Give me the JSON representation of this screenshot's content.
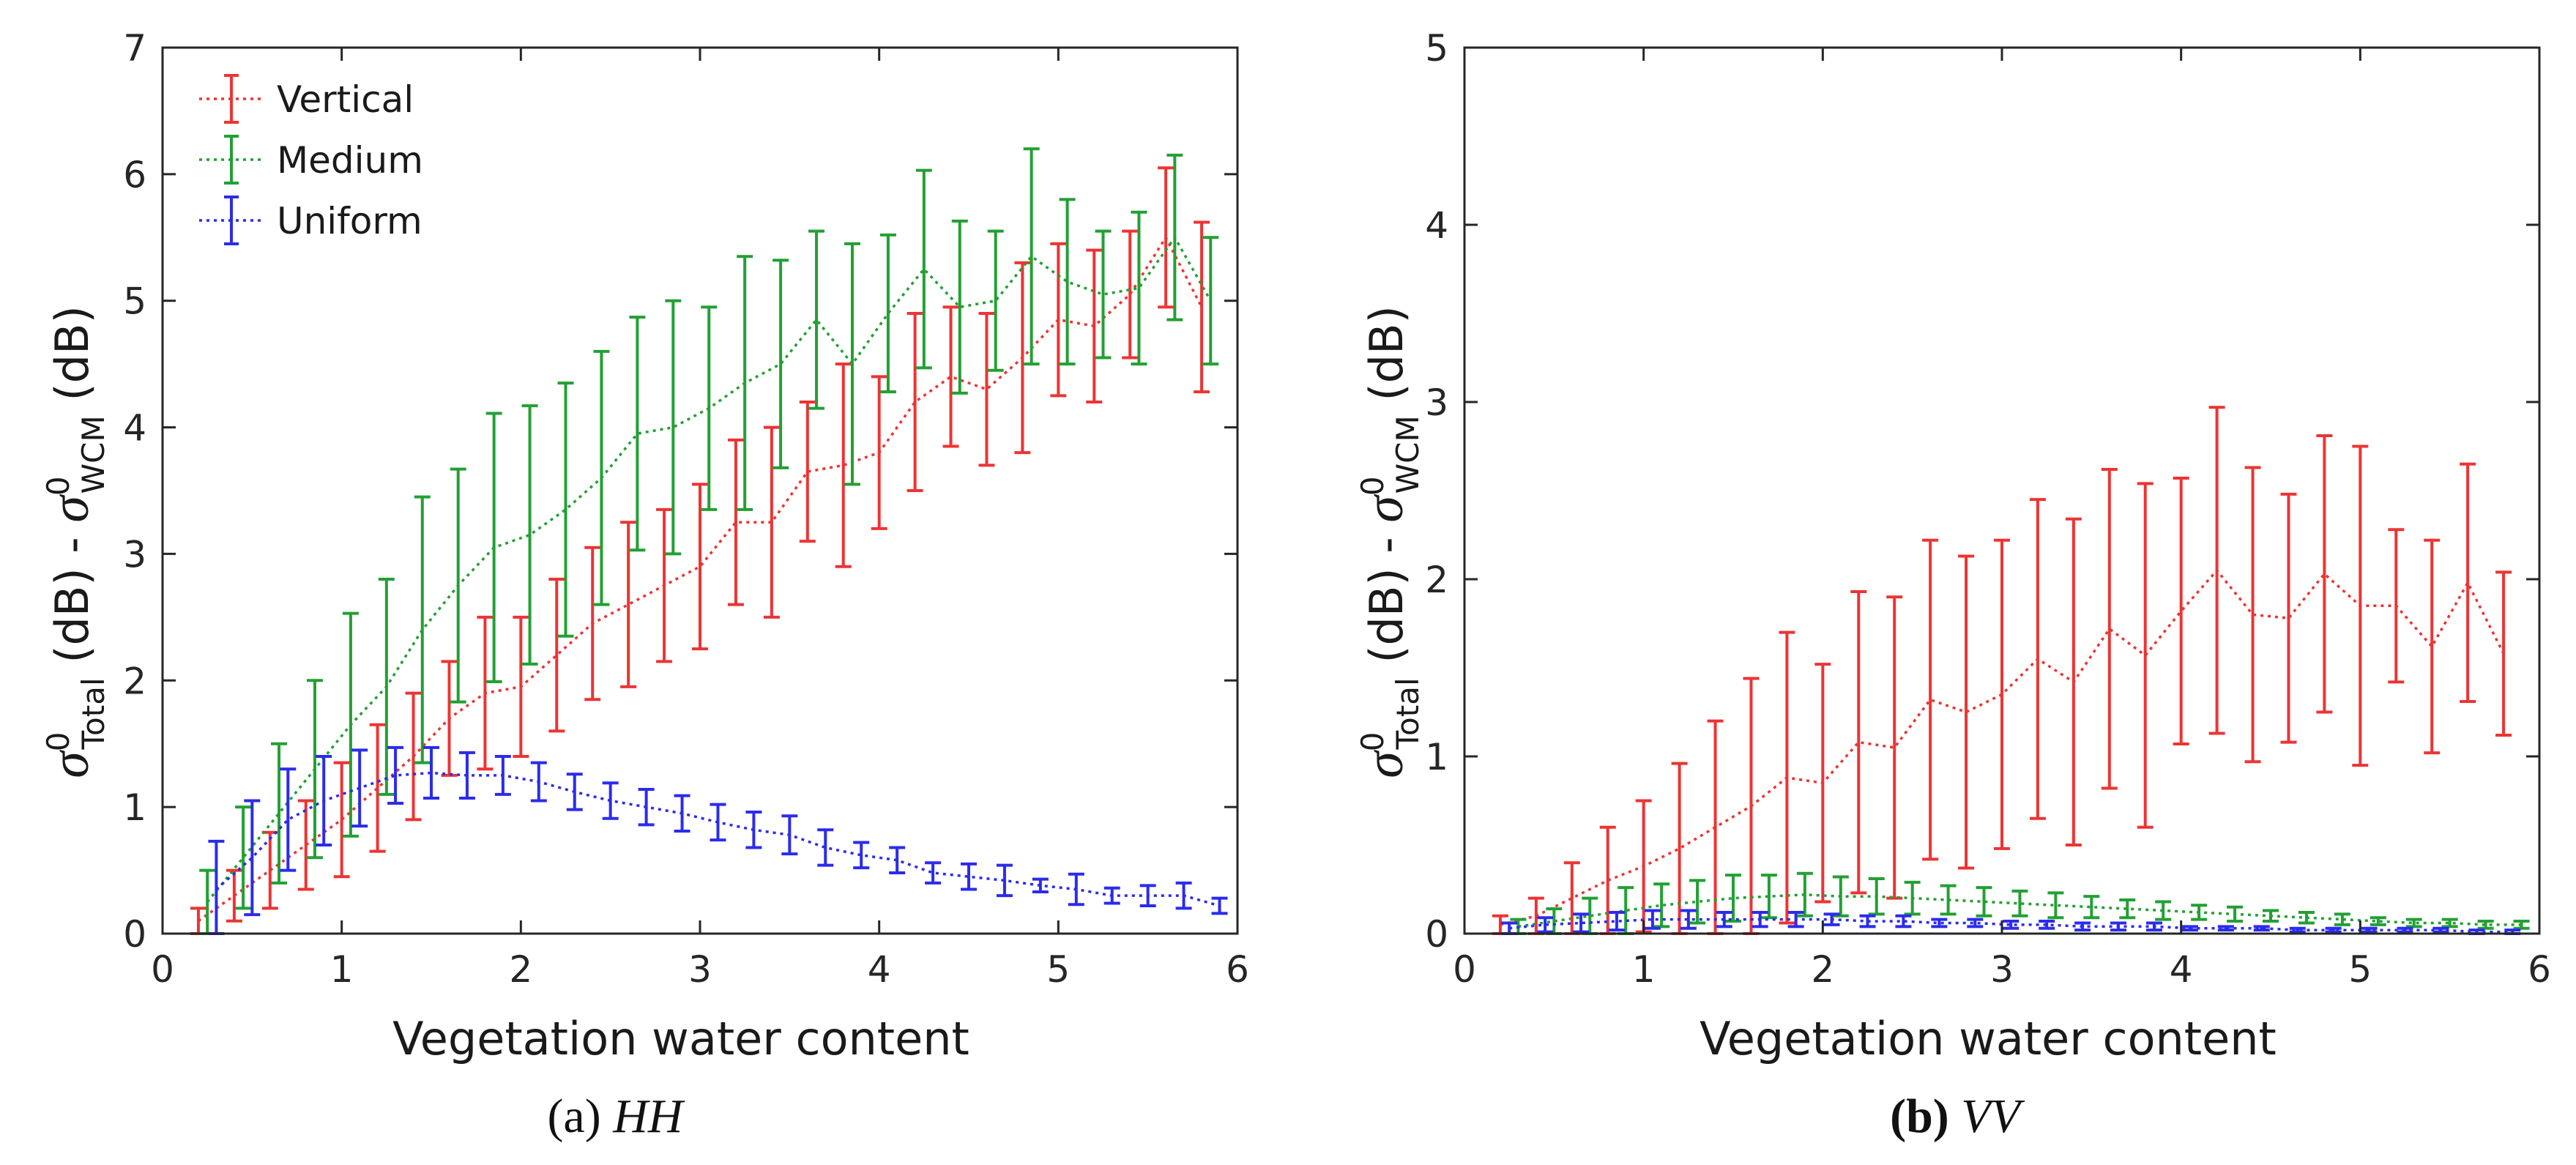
{
  "chart_data": [
    {
      "type": "line",
      "title": "",
      "caption_prefix": "(a)",
      "caption_italic": "HH",
      "xlabel": "Vegetation water content",
      "ylabel": {
        "symbol": "σ",
        "sup": "0",
        "sub1": "Total",
        "mid": " (dB) - ",
        "sub2": "WCM",
        "tail": " (dB)"
      },
      "xlim": [
        0,
        6
      ],
      "ylim": [
        0,
        7
      ],
      "xticks": [
        "0",
        "1",
        "2",
        "3",
        "4",
        "5",
        "6"
      ],
      "yticks": [
        "0",
        "1",
        "2",
        "3",
        "4",
        "5",
        "6",
        "7"
      ],
      "legend": {
        "position": "top-left",
        "entries": [
          "Vertical",
          "Medium",
          "Uniform"
        ]
      },
      "series": [
        {
          "name": "Vertical",
          "color": "#ee3333",
          "x": [
            0.2,
            0.4,
            0.6,
            0.8,
            1.0,
            1.2,
            1.4,
            1.6,
            1.8,
            2.0,
            2.2,
            2.4,
            2.6,
            2.8,
            3.0,
            3.2,
            3.4,
            3.6,
            3.8,
            4.0,
            4.2,
            4.4,
            4.6,
            4.8,
            5.0,
            5.2,
            5.4,
            5.6,
            5.8
          ],
          "values": [
            0.1,
            0.3,
            0.5,
            0.7,
            0.9,
            1.15,
            1.4,
            1.7,
            1.9,
            1.95,
            2.2,
            2.45,
            2.6,
            2.75,
            2.9,
            3.25,
            3.25,
            3.65,
            3.7,
            3.8,
            4.2,
            4.4,
            4.3,
            4.55,
            4.85,
            4.8,
            5.05,
            5.5,
            4.95
          ],
          "err": [
            0.1,
            0.2,
            0.3,
            0.35,
            0.45,
            0.5,
            0.5,
            0.45,
            0.6,
            0.55,
            0.6,
            0.6,
            0.65,
            0.6,
            0.65,
            0.65,
            0.75,
            0.55,
            0.8,
            0.6,
            0.7,
            0.55,
            0.6,
            0.75,
            0.6,
            0.6,
            0.5,
            0.55,
            0.67
          ]
        },
        {
          "name": "Medium",
          "color": "#22a033",
          "x": [
            0.25,
            0.45,
            0.65,
            0.85,
            1.05,
            1.25,
            1.45,
            1.65,
            1.85,
            2.05,
            2.25,
            2.45,
            2.65,
            2.85,
            3.05,
            3.25,
            3.45,
            3.65,
            3.85,
            4.05,
            4.25,
            4.45,
            4.65,
            4.85,
            5.05,
            5.25,
            5.45,
            5.65,
            5.85
          ],
          "values": [
            0.25,
            0.6,
            0.95,
            1.3,
            1.65,
            1.95,
            2.4,
            2.75,
            3.05,
            3.15,
            3.35,
            3.6,
            3.95,
            4.0,
            4.15,
            4.35,
            4.5,
            4.85,
            4.5,
            4.9,
            5.25,
            4.95,
            5.0,
            5.35,
            5.15,
            5.05,
            5.1,
            5.5,
            5.0
          ],
          "err": [
            0.25,
            0.4,
            0.55,
            0.7,
            0.88,
            0.85,
            1.05,
            0.92,
            1.06,
            1.02,
            1.0,
            1.0,
            0.92,
            1.0,
            0.8,
            1.0,
            0.82,
            0.7,
            0.95,
            0.62,
            0.78,
            0.68,
            0.55,
            0.85,
            0.65,
            0.5,
            0.6,
            0.65,
            0.5
          ]
        },
        {
          "name": "Uniform",
          "color": "#2b2bee",
          "x": [
            0.3,
            0.5,
            0.7,
            0.9,
            1.1,
            1.3,
            1.5,
            1.7,
            1.9,
            2.1,
            2.3,
            2.5,
            2.7,
            2.9,
            3.1,
            3.3,
            3.5,
            3.7,
            3.9,
            4.1,
            4.3,
            4.5,
            4.7,
            4.9,
            5.1,
            5.3,
            5.5,
            5.7,
            5.9
          ],
          "values": [
            0.35,
            0.6,
            0.9,
            1.05,
            1.15,
            1.25,
            1.27,
            1.25,
            1.25,
            1.2,
            1.12,
            1.05,
            1.0,
            0.95,
            0.88,
            0.82,
            0.78,
            0.68,
            0.62,
            0.58,
            0.48,
            0.45,
            0.42,
            0.38,
            0.35,
            0.3,
            0.3,
            0.3,
            0.22
          ],
          "err": [
            0.38,
            0.45,
            0.4,
            0.35,
            0.3,
            0.22,
            0.2,
            0.18,
            0.15,
            0.15,
            0.14,
            0.14,
            0.14,
            0.14,
            0.14,
            0.14,
            0.15,
            0.14,
            0.1,
            0.1,
            0.08,
            0.1,
            0.12,
            0.05,
            0.12,
            0.06,
            0.08,
            0.1,
            0.06
          ]
        }
      ]
    },
    {
      "type": "line",
      "title": "",
      "caption_prefix": "(b)",
      "caption_italic": "VV",
      "xlabel": "Vegetation water content",
      "ylabel": {
        "symbol": "σ",
        "sup": "0",
        "sub1": "Total",
        "mid": " (dB) - ",
        "sub2": "WCM",
        "tail": " (dB)"
      },
      "xlim": [
        0,
        6
      ],
      "ylim": [
        0,
        5
      ],
      "xticks": [
        "0",
        "1",
        "2",
        "3",
        "4",
        "5",
        "6"
      ],
      "yticks": [
        "0",
        "1",
        "2",
        "3",
        "4",
        "5"
      ],
      "legend": null,
      "series": [
        {
          "name": "Vertical",
          "color": "#ee3333",
          "x": [
            0.2,
            0.4,
            0.6,
            0.8,
            1.0,
            1.2,
            1.4,
            1.6,
            1.8,
            2.0,
            2.2,
            2.4,
            2.6,
            2.8,
            3.0,
            3.2,
            3.4,
            3.6,
            3.8,
            4.0,
            4.2,
            4.4,
            4.6,
            4.8,
            5.0,
            5.2,
            5.4,
            5.6,
            5.8
          ],
          "values": [
            0.05,
            0.1,
            0.2,
            0.3,
            0.38,
            0.48,
            0.6,
            0.72,
            0.88,
            0.85,
            1.08,
            1.05,
            1.32,
            1.25,
            1.35,
            1.55,
            1.42,
            1.72,
            1.57,
            1.82,
            2.05,
            1.8,
            1.78,
            2.03,
            1.85,
            1.85,
            1.62,
            1.98,
            1.58
          ],
          "err": [
            0.05,
            0.1,
            0.2,
            0.3,
            0.37,
            0.48,
            0.6,
            0.72,
            0.82,
            0.67,
            0.85,
            0.85,
            0.9,
            0.88,
            0.87,
            0.9,
            0.92,
            0.9,
            0.97,
            0.75,
            0.92,
            0.83,
            0.7,
            0.78,
            0.9,
            0.43,
            0.6,
            0.67,
            0.46
          ]
        },
        {
          "name": "Medium",
          "color": "#22a033",
          "x": [
            0.3,
            0.5,
            0.7,
            0.9,
            1.1,
            1.3,
            1.5,
            1.7,
            1.9,
            2.1,
            2.3,
            2.5,
            2.7,
            2.9,
            3.1,
            3.3,
            3.5,
            3.7,
            3.9,
            4.1,
            4.3,
            4.5,
            4.7,
            4.9,
            5.1,
            5.3,
            5.5,
            5.7,
            5.9
          ],
          "values": [
            0.04,
            0.07,
            0.1,
            0.13,
            0.16,
            0.18,
            0.2,
            0.21,
            0.22,
            0.21,
            0.21,
            0.2,
            0.19,
            0.18,
            0.17,
            0.16,
            0.15,
            0.14,
            0.13,
            0.12,
            0.11,
            0.1,
            0.09,
            0.08,
            0.07,
            0.06,
            0.06,
            0.05,
            0.05
          ],
          "err": [
            0.04,
            0.07,
            0.1,
            0.13,
            0.12,
            0.12,
            0.13,
            0.12,
            0.12,
            0.11,
            0.1,
            0.09,
            0.08,
            0.08,
            0.07,
            0.07,
            0.06,
            0.05,
            0.05,
            0.04,
            0.04,
            0.03,
            0.03,
            0.03,
            0.02,
            0.02,
            0.02,
            0.02,
            0.02
          ]
        },
        {
          "name": "Uniform",
          "color": "#2b2bee",
          "x": [
            0.25,
            0.45,
            0.65,
            0.85,
            1.05,
            1.25,
            1.45,
            1.65,
            1.85,
            2.05,
            2.25,
            2.45,
            2.65,
            2.85,
            3.05,
            3.25,
            3.45,
            3.65,
            3.85,
            4.05,
            4.25,
            4.45,
            4.65,
            4.85,
            5.05,
            5.25,
            5.45,
            5.65,
            5.85
          ],
          "values": [
            0.03,
            0.05,
            0.06,
            0.07,
            0.08,
            0.08,
            0.08,
            0.08,
            0.08,
            0.08,
            0.07,
            0.07,
            0.06,
            0.06,
            0.05,
            0.05,
            0.04,
            0.04,
            0.04,
            0.03,
            0.03,
            0.03,
            0.02,
            0.02,
            0.02,
            0.02,
            0.02,
            0.01,
            0.01
          ],
          "err": [
            0.03,
            0.04,
            0.05,
            0.05,
            0.05,
            0.05,
            0.04,
            0.04,
            0.04,
            0.03,
            0.03,
            0.03,
            0.02,
            0.02,
            0.02,
            0.02,
            0.02,
            0.02,
            0.02,
            0.01,
            0.01,
            0.01,
            0.01,
            0.01,
            0.01,
            0.01,
            0.01,
            0.01,
            0.01
          ]
        }
      ]
    }
  ]
}
